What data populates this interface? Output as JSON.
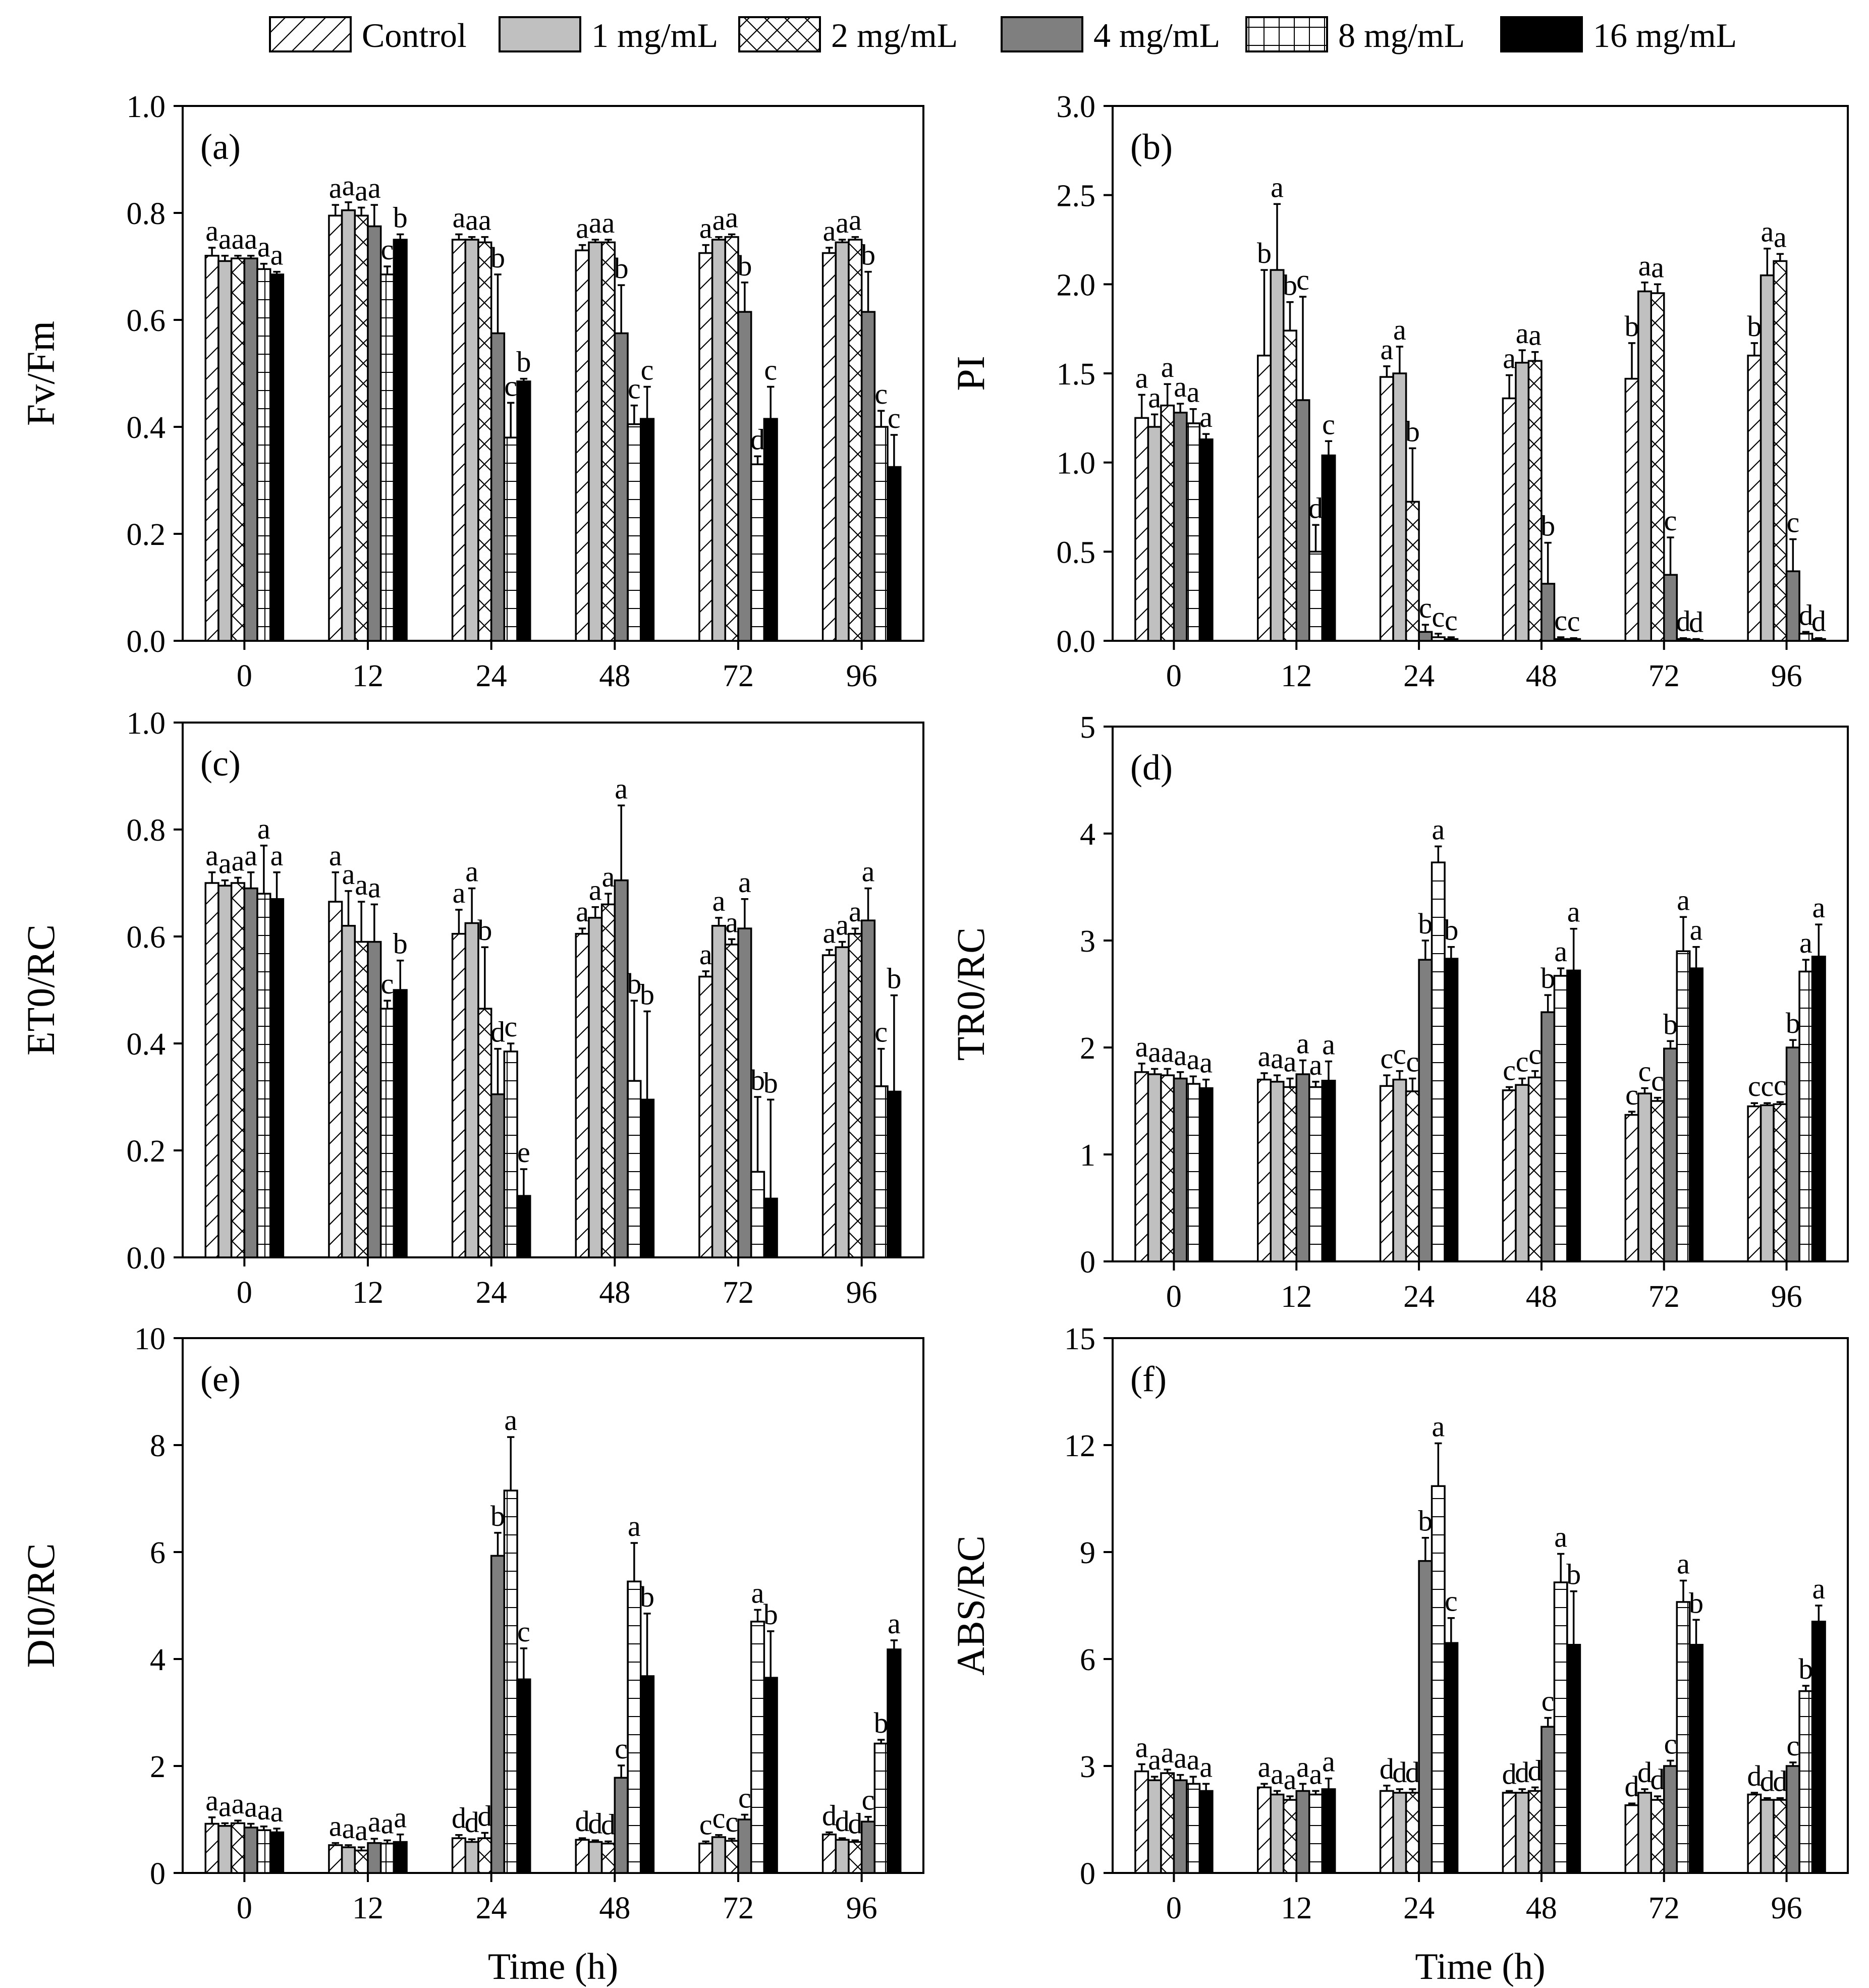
{
  "legend": {
    "items": [
      {
        "label": "Control",
        "pattern": "diag"
      },
      {
        "label": "1 mg/mL",
        "pattern": "lightgray"
      },
      {
        "label": "2 mg/mL",
        "pattern": "cross"
      },
      {
        "label": "4 mg/mL",
        "pattern": "darkgray"
      },
      {
        "label": "8 mg/mL",
        "pattern": "grid"
      },
      {
        "label": "16 mg/mL",
        "pattern": "black"
      }
    ]
  },
  "colors": {
    "lightgray": "#c0c0c0",
    "darkgray": "#7f7f7f",
    "black": "#000000",
    "white": "#ffffff"
  },
  "chart_data": [
    {
      "type": "bar",
      "panel": "(a)",
      "ylabel": "Fv/Fm",
      "xlabel": "",
      "ylim": [
        0,
        1.0
      ],
      "yticks": [
        "0.0",
        "0.2",
        "0.4",
        "0.6",
        "0.8",
        "1.0"
      ],
      "categories": [
        "0",
        "12",
        "24",
        "48",
        "72",
        "96"
      ],
      "series": [
        {
          "name": "Control",
          "values": [
            0.72,
            0.795,
            0.75,
            0.73,
            0.725,
            0.725
          ],
          "errors": [
            0.015,
            0.02,
            0.01,
            0.01,
            0.015,
            0.01
          ],
          "letters": [
            "a",
            "a",
            "a",
            "a",
            "a",
            "a"
          ]
        },
        {
          "name": "1 mg/mL",
          "values": [
            0.71,
            0.805,
            0.75,
            0.745,
            0.75,
            0.745
          ],
          "errors": [
            0.01,
            0.015,
            0.005,
            0.005,
            0.005,
            0.005
          ],
          "letters": [
            "a",
            "a",
            "a",
            "a",
            "a",
            "a"
          ]
        },
        {
          "name": "2 mg/mL",
          "values": [
            0.715,
            0.795,
            0.745,
            0.745,
            0.755,
            0.75
          ],
          "errors": [
            0.005,
            0.015,
            0.01,
            0.005,
            0.005,
            0.005
          ],
          "letters": [
            "a",
            "a",
            "a",
            "a",
            "a",
            "a"
          ]
        },
        {
          "name": "4 mg/mL",
          "values": [
            0.715,
            0.775,
            0.575,
            0.575,
            0.615,
            0.615
          ],
          "errors": [
            0.005,
            0.04,
            0.11,
            0.09,
            0.055,
            0.075
          ],
          "letters": [
            "a",
            "a",
            "b",
            "b",
            "b",
            "b"
          ]
        },
        {
          "name": "8 mg/mL",
          "values": [
            0.695,
            0.685,
            0.38,
            0.405,
            0.33,
            0.4
          ],
          "errors": [
            0.01,
            0.015,
            0.065,
            0.035,
            0.015,
            0.03
          ],
          "letters": [
            "a",
            "c",
            "c",
            "c",
            "d",
            "c"
          ]
        },
        {
          "name": "16 mg/mL",
          "values": [
            0.685,
            0.75,
            0.485,
            0.415,
            0.415,
            0.325
          ],
          "errors": [
            0.005,
            0.01,
            0.005,
            0.06,
            0.06,
            0.06
          ],
          "letters": [
            "a",
            "b",
            "b",
            "c",
            "c",
            "c"
          ]
        }
      ]
    },
    {
      "type": "bar",
      "panel": "(b)",
      "ylabel": "PI",
      "xlabel": "",
      "ylim": [
        0,
        3.0
      ],
      "yticks": [
        "0.0",
        "0.5",
        "1.0",
        "1.5",
        "2.0",
        "2.5",
        "3.0"
      ],
      "categories": [
        "0",
        "12",
        "24",
        "48",
        "72",
        "96"
      ],
      "series": [
        {
          "name": "Control",
          "values": [
            1.25,
            1.6,
            1.48,
            1.36,
            1.47,
            1.6
          ],
          "errors": [
            0.13,
            0.48,
            0.06,
            0.13,
            0.2,
            0.07
          ],
          "letters": [
            "a",
            "b",
            "a",
            "a",
            "b",
            "b"
          ]
        },
        {
          "name": "1 mg/mL",
          "values": [
            1.2,
            2.08,
            1.5,
            1.56,
            1.96,
            2.05
          ],
          "errors": [
            0.07,
            0.37,
            0.15,
            0.07,
            0.05,
            0.15
          ],
          "letters": [
            "a",
            "a",
            "a",
            "a",
            "a",
            "a"
          ]
        },
        {
          "name": "2 mg/mL",
          "values": [
            1.32,
            1.74,
            0.78,
            1.57,
            1.95,
            2.13
          ],
          "errors": [
            0.12,
            0.16,
            0.3,
            0.05,
            0.05,
            0.04
          ],
          "letters": [
            "a",
            "b",
            "b",
            "a",
            "a",
            "a"
          ]
        },
        {
          "name": "4 mg/mL",
          "values": [
            1.28,
            1.35,
            0.05,
            0.32,
            0.37,
            0.39
          ],
          "errors": [
            0.05,
            0.58,
            0.04,
            0.23,
            0.21,
            0.18
          ],
          "letters": [
            "a",
            "c",
            "c",
            "b",
            "c",
            "c"
          ]
        },
        {
          "name": "8 mg/mL",
          "values": [
            1.22,
            0.5,
            0.02,
            0.01,
            0.01,
            0.04
          ],
          "errors": [
            0.08,
            0.15,
            0.02,
            0.01,
            0.005,
            0.01
          ],
          "letters": [
            "a",
            "d",
            "c",
            "c",
            "d",
            "d"
          ]
        },
        {
          "name": "16 mg/mL",
          "values": [
            1.13,
            1.04,
            0.01,
            0.01,
            0.005,
            0.01
          ],
          "errors": [
            0.03,
            0.08,
            0.01,
            0.005,
            0.005,
            0.005
          ],
          "letters": [
            "a",
            "c",
            "c",
            "c",
            "d",
            "d"
          ]
        }
      ]
    },
    {
      "type": "bar",
      "panel": "(c)",
      "ylabel": "ET0/RC",
      "xlabel": "",
      "ylim": [
        0,
        1.0
      ],
      "yticks": [
        "0.0",
        "0.2",
        "0.4",
        "0.6",
        "0.8",
        "1.0"
      ],
      "categories": [
        "0",
        "12",
        "24",
        "48",
        "72",
        "96"
      ],
      "series": [
        {
          "name": "Control",
          "values": [
            0.7,
            0.665,
            0.605,
            0.605,
            0.525,
            0.565
          ],
          "errors": [
            0.02,
            0.055,
            0.045,
            0.01,
            0.01,
            0.01
          ],
          "letters": [
            "a",
            "a",
            "a",
            "a",
            "a",
            "a"
          ]
        },
        {
          "name": "1 mg/mL",
          "values": [
            0.695,
            0.62,
            0.625,
            0.635,
            0.62,
            0.58
          ],
          "errors": [
            0.01,
            0.065,
            0.065,
            0.02,
            0.015,
            0.01
          ],
          "letters": [
            "a",
            "a",
            "a",
            "a",
            "a",
            "a"
          ]
        },
        {
          "name": "2 mg/mL",
          "values": [
            0.7,
            0.59,
            0.465,
            0.66,
            0.585,
            0.605
          ],
          "errors": [
            0.01,
            0.075,
            0.115,
            0.02,
            0.01,
            0.01
          ],
          "letters": [
            "a",
            "a",
            "b",
            "a",
            "a",
            "a"
          ]
        },
        {
          "name": "4 mg/mL",
          "values": [
            0.69,
            0.59,
            0.305,
            0.705,
            0.615,
            0.63
          ],
          "errors": [
            0.03,
            0.07,
            0.085,
            0.14,
            0.055,
            0.06
          ],
          "letters": [
            "a",
            "a",
            "d",
            "a",
            "a",
            "a"
          ]
        },
        {
          "name": "8 mg/mL",
          "values": [
            0.68,
            0.465,
            0.385,
            0.33,
            0.16,
            0.32
          ],
          "errors": [
            0.09,
            0.015,
            0.015,
            0.15,
            0.14,
            0.07
          ],
          "letters": [
            "a",
            "c",
            "c",
            "b",
            "b",
            "c"
          ]
        },
        {
          "name": "16 mg/mL",
          "values": [
            0.67,
            0.5,
            0.115,
            0.295,
            0.11,
            0.31
          ],
          "errors": [
            0.05,
            0.055,
            0.05,
            0.165,
            0.185,
            0.18
          ],
          "letters": [
            "a",
            "b",
            "e",
            "b",
            "b",
            "b"
          ]
        }
      ]
    },
    {
      "type": "bar",
      "panel": "(d)",
      "ylabel": "TR0/RC",
      "xlabel": "",
      "ylim": [
        0,
        5
      ],
      "yticks": [
        "0",
        "1",
        "2",
        "3",
        "4",
        "5"
      ],
      "categories": [
        "0",
        "12",
        "24",
        "48",
        "72",
        "96"
      ],
      "series": [
        {
          "name": "Control",
          "values": [
            1.77,
            1.7,
            1.64,
            1.6,
            1.37,
            1.45
          ],
          "errors": [
            0.08,
            0.06,
            0.1,
            0.03,
            0.03,
            0.03
          ],
          "letters": [
            "a",
            "a",
            "c",
            "c",
            "c",
            "c"
          ]
        },
        {
          "name": "1 mg/mL",
          "values": [
            1.75,
            1.68,
            1.7,
            1.65,
            1.57,
            1.46
          ],
          "errors": [
            0.05,
            0.06,
            0.08,
            0.06,
            0.05,
            0.02
          ],
          "letters": [
            "a",
            "a",
            "c",
            "c",
            "c",
            "c"
          ]
        },
        {
          "name": "2 mg/mL",
          "values": [
            1.74,
            1.63,
            1.59,
            1.72,
            1.5,
            1.47
          ],
          "errors": [
            0.06,
            0.08,
            0.12,
            0.06,
            0.03,
            0.02
          ],
          "letters": [
            "a",
            "a",
            "c",
            "c",
            "c",
            "c"
          ]
        },
        {
          "name": "4 mg/mL",
          "values": [
            1.71,
            1.75,
            2.82,
            2.33,
            1.99,
            2.0
          ],
          "errors": [
            0.06,
            0.13,
            0.18,
            0.16,
            0.07,
            0.07
          ],
          "letters": [
            "a",
            "a",
            "b",
            "b",
            "b",
            "b"
          ]
        },
        {
          "name": "8 mg/mL",
          "values": [
            1.66,
            1.63,
            3.73,
            2.67,
            2.9,
            2.71
          ],
          "errors": [
            0.07,
            0.05,
            0.15,
            0.07,
            0.32,
            0.11
          ],
          "letters": [
            "a",
            "a",
            "a",
            "a",
            "a",
            "a"
          ]
        },
        {
          "name": "16 mg/mL",
          "values": [
            1.62,
            1.69,
            2.83,
            2.72,
            2.74,
            2.85
          ],
          "errors": [
            0.08,
            0.18,
            0.11,
            0.39,
            0.2,
            0.3
          ],
          "letters": [
            "a",
            "a",
            "b",
            "a",
            "a",
            "a"
          ]
        }
      ]
    },
    {
      "type": "bar",
      "panel": "(e)",
      "ylabel": "DI0/RC",
      "xlabel": "Time (h)",
      "ylim": [
        0,
        10
      ],
      "yticks": [
        "0",
        "2",
        "4",
        "6",
        "8",
        "10"
      ],
      "categories": [
        "0",
        "12",
        "24",
        "48",
        "72",
        "96"
      ],
      "series": [
        {
          "name": "Control",
          "values": [
            0.92,
            0.52,
            0.65,
            0.62,
            0.55,
            0.72
          ],
          "errors": [
            0.12,
            0.04,
            0.06,
            0.03,
            0.04,
            0.04
          ],
          "letters": [
            "a",
            "a",
            "d",
            "d",
            "c",
            "d"
          ]
        },
        {
          "name": "1 mg/mL",
          "values": [
            0.88,
            0.48,
            0.58,
            0.58,
            0.67,
            0.62
          ],
          "errors": [
            0.05,
            0.04,
            0.05,
            0.03,
            0.04,
            0.03
          ],
          "letters": [
            "a",
            "a",
            "d",
            "d",
            "c",
            "d"
          ]
        },
        {
          "name": "2 mg/mL",
          "values": [
            0.93,
            0.42,
            0.65,
            0.55,
            0.6,
            0.58
          ],
          "errors": [
            0.05,
            0.06,
            0.1,
            0.04,
            0.04,
            0.03
          ],
          "letters": [
            "a",
            "a",
            "d",
            "d",
            "c",
            "d"
          ]
        },
        {
          "name": "4 mg/mL",
          "values": [
            0.85,
            0.56,
            5.93,
            1.78,
            1.0,
            0.96
          ],
          "errors": [
            0.07,
            0.08,
            0.43,
            0.23,
            0.09,
            0.09
          ],
          "letters": [
            "a",
            "a",
            "b",
            "c",
            "c",
            "c"
          ]
        },
        {
          "name": "8 mg/mL",
          "values": [
            0.8,
            0.55,
            7.15,
            5.45,
            4.7,
            2.42
          ],
          "errors": [
            0.07,
            0.06,
            1.0,
            0.72,
            0.22,
            0.07
          ],
          "letters": [
            "a",
            "a",
            "a",
            "a",
            "a",
            "b"
          ]
        },
        {
          "name": "16 mg/mL",
          "values": [
            0.76,
            0.58,
            3.62,
            3.68,
            3.65,
            4.18
          ],
          "errors": [
            0.07,
            0.14,
            0.58,
            1.17,
            0.87,
            0.17
          ],
          "letters": [
            "a",
            "a",
            "c",
            "b",
            "b",
            "a"
          ]
        }
      ]
    },
    {
      "type": "bar",
      "panel": "(f)",
      "ylabel": "ABS/RC",
      "xlabel": "Time (h)",
      "ylim": [
        0,
        15
      ],
      "yticks": [
        "0",
        "3",
        "6",
        "9",
        "12",
        "15"
      ],
      "categories": [
        "0",
        "12",
        "24",
        "48",
        "72",
        "96"
      ],
      "series": [
        {
          "name": "Control",
          "values": [
            2.85,
            2.4,
            2.3,
            2.25,
            1.9,
            2.2
          ],
          "errors": [
            0.2,
            0.1,
            0.15,
            0.05,
            0.05,
            0.05
          ],
          "letters": [
            "a",
            "a",
            "d",
            "d",
            "d",
            "d"
          ]
        },
        {
          "name": "1 mg/mL",
          "values": [
            2.6,
            2.2,
            2.25,
            2.25,
            2.25,
            2.05
          ],
          "errors": [
            0.1,
            0.1,
            0.1,
            0.1,
            0.1,
            0.05
          ],
          "letters": [
            "a",
            "a",
            "d",
            "d",
            "d",
            "d"
          ]
        },
        {
          "name": "2 mg/mL",
          "values": [
            2.8,
            2.05,
            2.25,
            2.3,
            2.05,
            2.05
          ],
          "errors": [
            0.1,
            0.1,
            0.1,
            0.1,
            0.1,
            0.05
          ],
          "letters": [
            "a",
            "a",
            "d",
            "d",
            "d",
            "d"
          ]
        },
        {
          "name": "4 mg/mL",
          "values": [
            2.6,
            2.3,
            8.75,
            4.1,
            3.0,
            3.0
          ],
          "errors": [
            0.15,
            0.2,
            0.65,
            0.25,
            0.15,
            0.1
          ],
          "letters": [
            "a",
            "a",
            "b",
            "c",
            "c",
            "c"
          ]
        },
        {
          "name": "8 mg/mL",
          "values": [
            2.5,
            2.2,
            10.85,
            8.15,
            7.6,
            5.1
          ],
          "errors": [
            0.2,
            0.1,
            1.2,
            0.8,
            0.6,
            0.15
          ],
          "letters": [
            "a",
            "a",
            "a",
            "a",
            "a",
            "b"
          ]
        },
        {
          "name": "16 mg/mL",
          "values": [
            2.3,
            2.35,
            6.45,
            6.4,
            6.4,
            7.05
          ],
          "errors": [
            0.2,
            0.3,
            0.7,
            1.5,
            0.7,
            0.45
          ],
          "letters": [
            "a",
            "a",
            "c",
            "b",
            "b",
            "a"
          ]
        }
      ]
    }
  ]
}
